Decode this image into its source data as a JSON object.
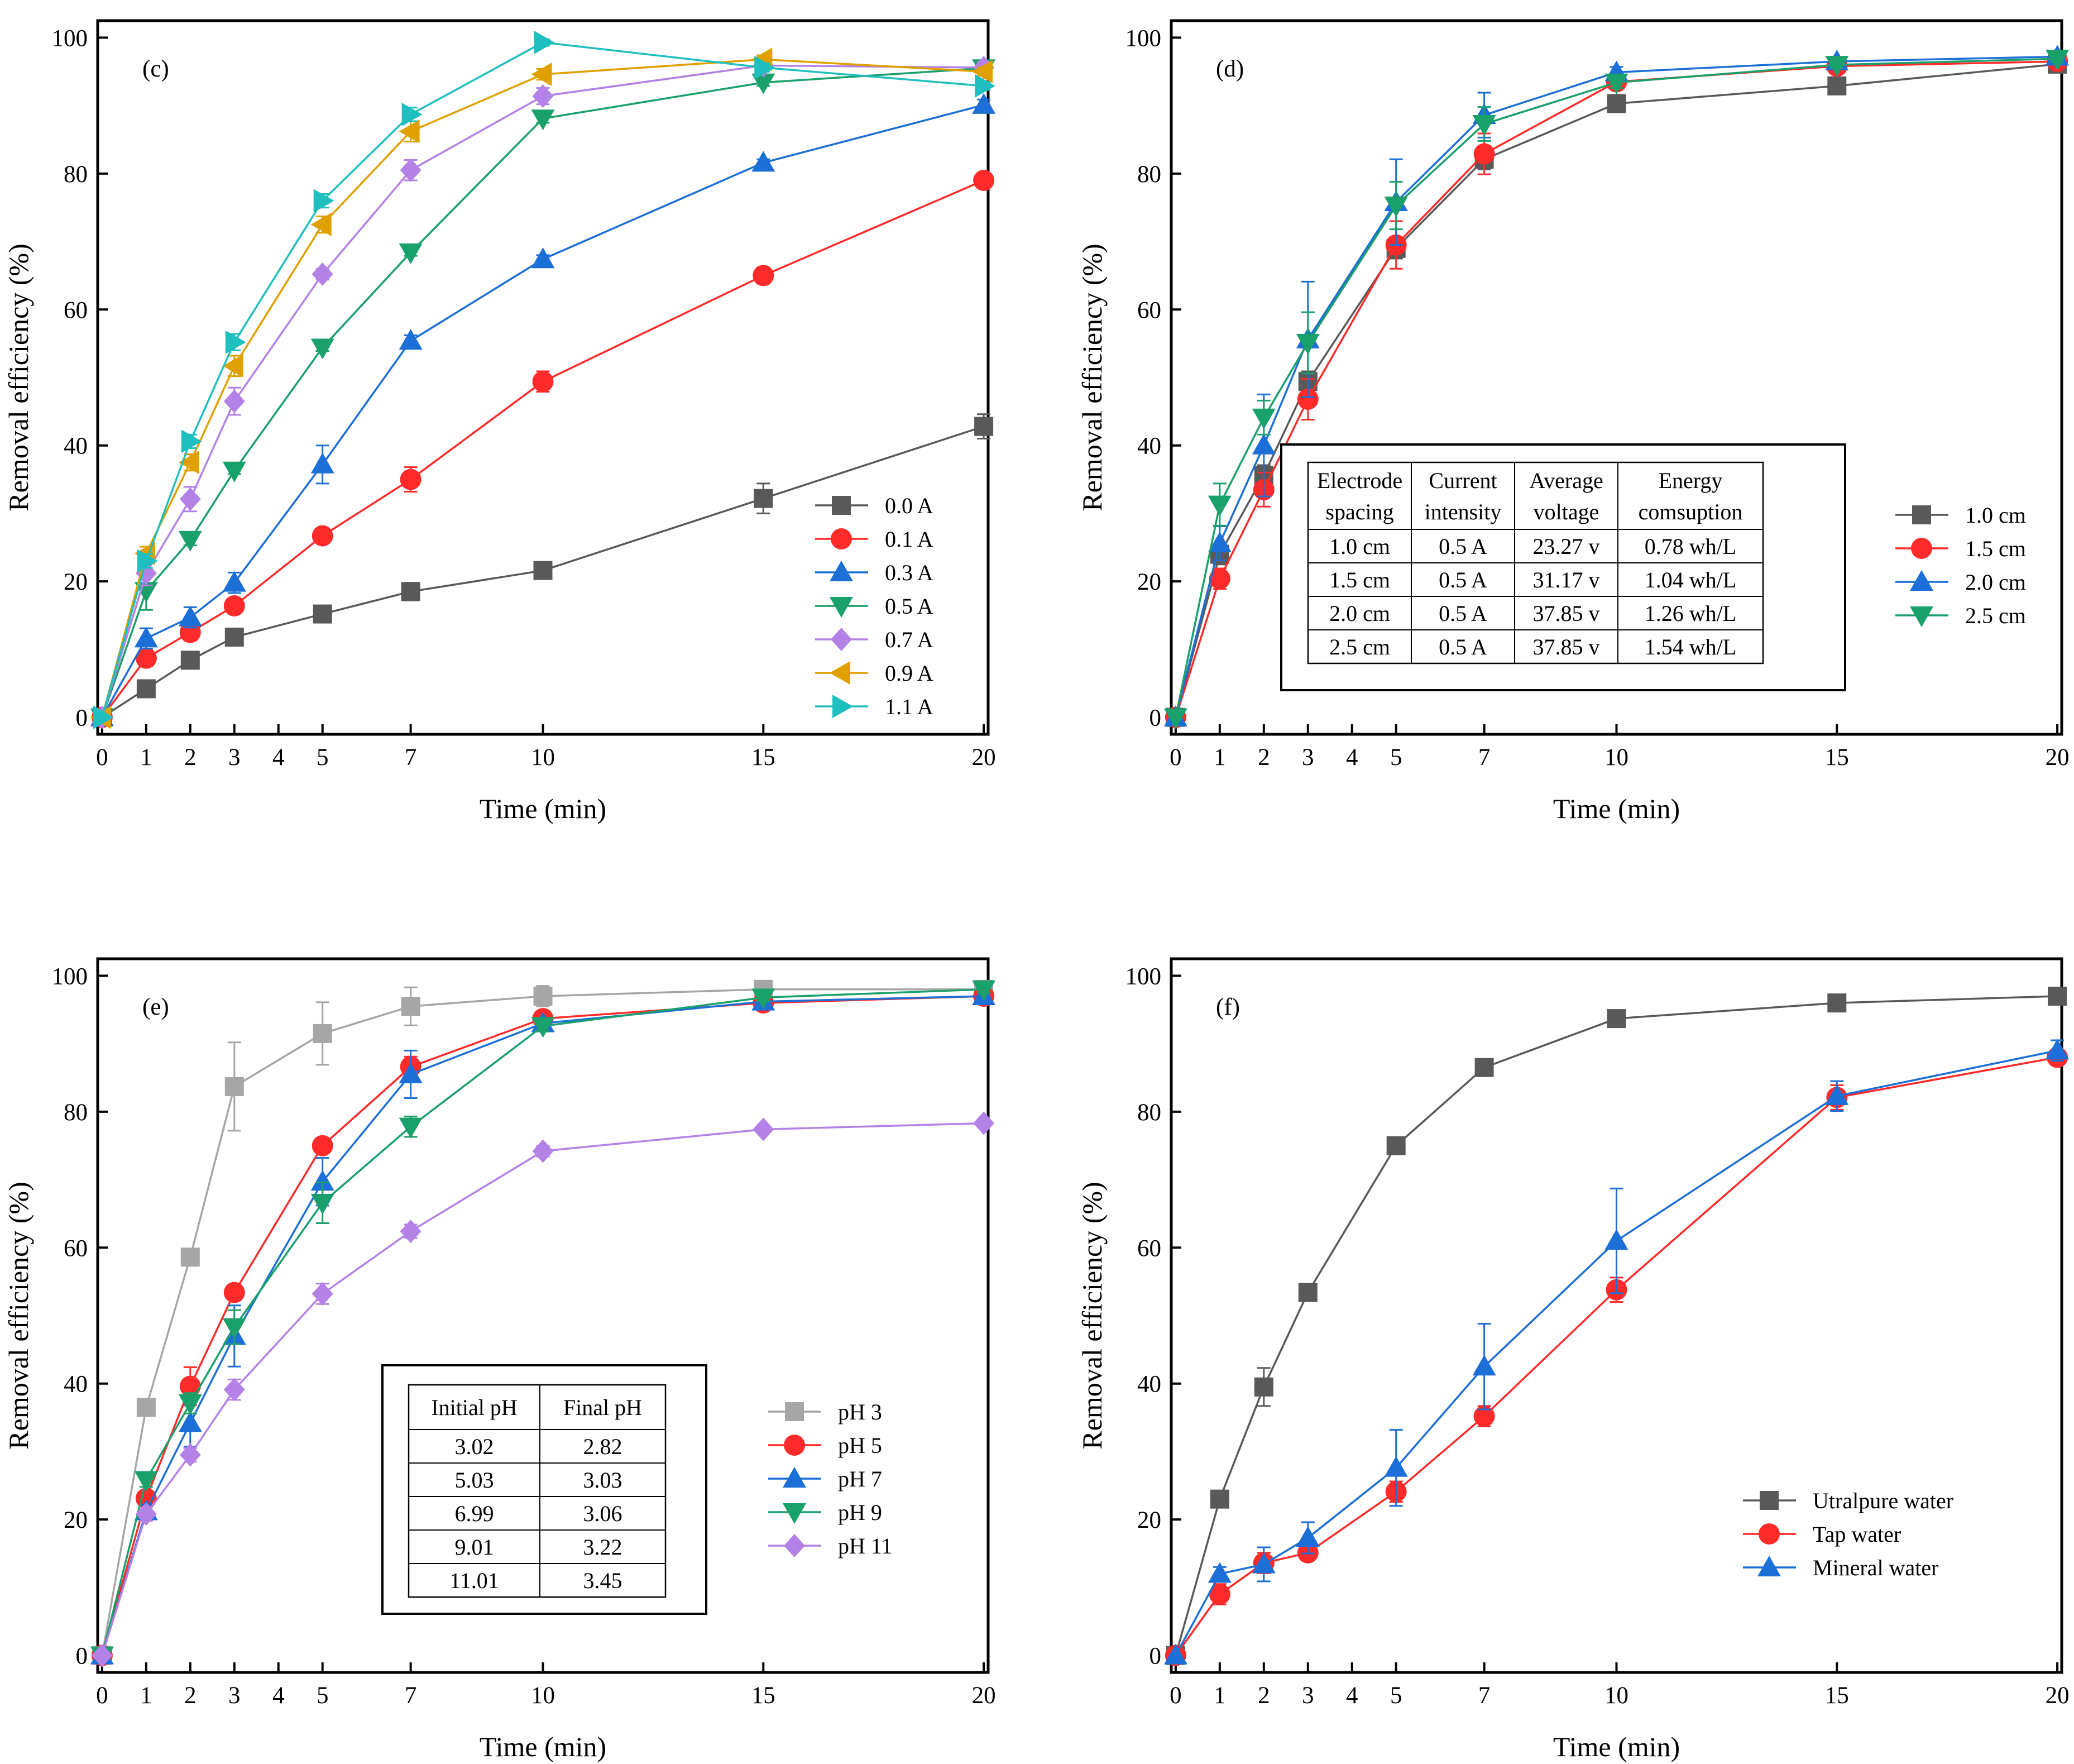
{
  "chart_data": [
    {
      "id": "c",
      "type": "line",
      "panel_label": "(c)",
      "xlabel": "Time (min)",
      "ylabel": "Removal efficiency (%)",
      "xlim": [
        0,
        20
      ],
      "ylim": [
        0,
        100
      ],
      "xticks": [
        0,
        1,
        2,
        3,
        4,
        5,
        7,
        10,
        15,
        20
      ],
      "yticks": [
        0,
        20,
        40,
        60,
        80,
        100
      ],
      "x": [
        0,
        1,
        2,
        3,
        5,
        7,
        10,
        15,
        20
      ],
      "legend_position": "lower-right",
      "series": [
        {
          "name": "0.0 A",
          "color": "#595959",
          "marker": "square",
          "values": [
            0,
            4.2,
            8.4,
            11.8,
            15.2,
            18.5,
            21.6,
            32.2,
            42.8
          ],
          "errors": [
            0,
            0.5,
            0.5,
            0.5,
            0.6,
            1.3,
            0.8,
            2.2,
            1.8
          ]
        },
        {
          "name": "0.1 A",
          "color": "#ff2a2a",
          "marker": "circle",
          "values": [
            0,
            8.7,
            12.5,
            16.4,
            26.7,
            35.0,
            49.4,
            65.0,
            79.0
          ],
          "errors": [
            0,
            1.2,
            1.2,
            0.6,
            0.5,
            1.8,
            1.5,
            1.2,
            0.6
          ]
        },
        {
          "name": "0.3 A",
          "color": "#1c6fd6",
          "marker": "triangle-up",
          "values": [
            0,
            11.6,
            14.7,
            19.8,
            37.2,
            55.4,
            67.4,
            81.6,
            90.1
          ],
          "errors": [
            0,
            1.5,
            1.5,
            1.5,
            2.8,
            0.8,
            0.6,
            0.5,
            0.8
          ]
        },
        {
          "name": "0.5 A",
          "color": "#1aa06a",
          "marker": "triangle-down",
          "values": [
            0,
            18.6,
            26.1,
            36.3,
            54.4,
            68.4,
            88.1,
            93.4,
            95.5
          ],
          "errors": [
            0,
            2.8,
            0.8,
            0.5,
            0.5,
            0.5,
            0.6,
            0.5,
            0.5
          ]
        },
        {
          "name": "0.7 A",
          "color": "#b482e6",
          "marker": "diamond",
          "values": [
            0,
            21.2,
            32.1,
            46.5,
            65.2,
            80.5,
            91.4,
            95.9,
            95.6
          ],
          "errors": [
            0,
            1.8,
            1.8,
            2.0,
            0.8,
            1.5,
            1.2,
            0.8,
            0.8
          ]
        },
        {
          "name": "0.9 A",
          "color": "#e0a000",
          "marker": "triangle-left",
          "values": [
            0,
            24.1,
            37.5,
            51.7,
            72.5,
            86.2,
            94.6,
            96.8,
            95.0
          ],
          "errors": [
            0,
            1.0,
            1.2,
            1.5,
            1.2,
            1.5,
            0.8,
            0.6,
            0.6
          ]
        },
        {
          "name": "1.1 A",
          "color": "#1fbfbf",
          "marker": "triangle-right",
          "values": [
            0,
            23.0,
            40.6,
            55.2,
            76.0,
            88.7,
            99.3,
            95.6,
            92.9
          ],
          "errors": [
            0,
            1.0,
            1.0,
            1.2,
            1.0,
            1.0,
            0.5,
            0.6,
            0.6
          ]
        }
      ]
    },
    {
      "id": "d",
      "type": "line",
      "panel_label": "(d)",
      "xlabel": "Time (min)",
      "ylabel": "Removal efficiency (%)",
      "xlim": [
        0,
        20
      ],
      "ylim": [
        0,
        100
      ],
      "xticks": [
        0,
        1,
        2,
        3,
        4,
        5,
        7,
        10,
        15,
        20
      ],
      "yticks": [
        0,
        20,
        40,
        60,
        80,
        100
      ],
      "x": [
        0,
        1,
        2,
        3,
        5,
        7,
        10,
        15,
        20
      ],
      "legend_position": "right",
      "series": [
        {
          "name": "1.0 cm",
          "color": "#595959",
          "marker": "square",
          "values": [
            0,
            24.0,
            35.6,
            49.4,
            69.0,
            82.1,
            90.3,
            92.9,
            96.1
          ],
          "errors": [
            0,
            1.5,
            1.5,
            1.5,
            1.5,
            1.5,
            0.6,
            0.6,
            0.5
          ]
        },
        {
          "name": "1.5 cm",
          "color": "#ff2a2a",
          "marker": "circle",
          "values": [
            0,
            20.4,
            33.5,
            46.8,
            69.5,
            82.9,
            93.5,
            95.8,
            96.5
          ],
          "errors": [
            0,
            1.5,
            2.5,
            3.0,
            3.5,
            3.0,
            0.8,
            0.5,
            0.5
          ]
        },
        {
          "name": "2.0 cm",
          "color": "#1c6fd6",
          "marker": "triangle-up",
          "values": [
            0,
            25.6,
            40.0,
            55.6,
            75.8,
            88.6,
            94.9,
            96.5,
            97.2
          ],
          "errors": [
            0,
            2.5,
            7.5,
            8.5,
            6.3,
            3.3,
            0.8,
            0.5,
            0.5
          ]
        },
        {
          "name": "2.5 cm",
          "color": "#1aa06a",
          "marker": "triangle-down",
          "values": [
            0,
            31.3,
            44.1,
            55.1,
            75.3,
            87.3,
            93.4,
            96.0,
            96.9
          ],
          "errors": [
            0,
            3.1,
            2.5,
            4.5,
            3.5,
            2.5,
            0.8,
            0.5,
            0.5
          ]
        }
      ],
      "table": {
        "headers": [
          [
            "Electrode",
            "spacing"
          ],
          [
            "Current",
            "intensity"
          ],
          [
            "Average",
            "voltage"
          ],
          [
            "Energy",
            "comsuption"
          ]
        ],
        "rows": [
          [
            "1.0 cm",
            "0.5 A",
            "23.27 v",
            "0.78 wh/L"
          ],
          [
            "1.5 cm",
            "0.5 A",
            "31.17 v",
            "1.04 wh/L"
          ],
          [
            "2.0 cm",
            "0.5 A",
            "37.85 v",
            "1.26 wh/L"
          ],
          [
            "2.5 cm",
            "0.5 A",
            "37.85 v",
            "1.54 wh/L"
          ]
        ]
      }
    },
    {
      "id": "e",
      "type": "line",
      "panel_label": "(e)",
      "xlabel": "Time (min)",
      "ylabel": "Removal efficiency (%)",
      "xlim": [
        0,
        20
      ],
      "ylim": [
        0,
        100
      ],
      "xticks": [
        0,
        1,
        2,
        3,
        4,
        5,
        7,
        10,
        15,
        20
      ],
      "yticks": [
        0,
        20,
        40,
        60,
        80,
        100
      ],
      "x": [
        0,
        1,
        2,
        3,
        5,
        7,
        10,
        15,
        20
      ],
      "legend_position": "lower-right",
      "series": [
        {
          "name": "pH 3",
          "color": "#a6a6a6",
          "marker": "square",
          "values": [
            0,
            36.5,
            58.6,
            83.7,
            91.5,
            95.5,
            97.0,
            98.0,
            98.0
          ],
          "errors": [
            0,
            0.8,
            0.8,
            6.5,
            4.6,
            2.8,
            1.5,
            0.8,
            0.6
          ]
        },
        {
          "name": "pH 5",
          "color": "#ff2a2a",
          "marker": "circle",
          "values": [
            0,
            23.1,
            39.6,
            53.4,
            75.0,
            86.6,
            93.7,
            96.0,
            97.0
          ],
          "errors": [
            0,
            1.0,
            2.8,
            0.8,
            0.8,
            1.5,
            0.8,
            0.5,
            0.5
          ]
        },
        {
          "name": "pH 7",
          "color": "#1c6fd6",
          "marker": "triangle-up",
          "values": [
            0,
            21.2,
            34.2,
            47.0,
            69.7,
            85.5,
            93.0,
            96.2,
            97.0
          ],
          "errors": [
            0,
            1.0,
            3.5,
            4.5,
            3.5,
            3.5,
            0.8,
            0.5,
            0.5
          ]
        },
        {
          "name": "pH 9",
          "color": "#1aa06a",
          "marker": "triangle-down",
          "values": [
            0,
            25.8,
            37.1,
            48.3,
            66.6,
            77.8,
            92.6,
            96.8,
            98.0
          ],
          "errors": [
            0,
            1.0,
            1.5,
            2.5,
            3.0,
            1.5,
            0.8,
            0.5,
            0.5
          ]
        },
        {
          "name": "pH 11",
          "color": "#b482e6",
          "marker": "diamond",
          "values": [
            0,
            20.8,
            29.5,
            39.1,
            53.2,
            62.4,
            74.2,
            77.4,
            78.3
          ],
          "errors": [
            0,
            1.0,
            1.0,
            1.5,
            1.5,
            1.0,
            0.8,
            0.5,
            0.5
          ]
        }
      ],
      "table": {
        "headers": [
          [
            "Initial pH"
          ],
          [
            "Final pH"
          ]
        ],
        "rows": [
          [
            "3.02",
            "2.82"
          ],
          [
            "5.03",
            "3.03"
          ],
          [
            "6.99",
            "3.06"
          ],
          [
            "9.01",
            "3.22"
          ],
          [
            "11.01",
            "3.45"
          ]
        ]
      }
    },
    {
      "id": "f",
      "type": "line",
      "panel_label": "(f)",
      "xlabel": "Time (min)",
      "ylabel": "Removal efficiency (%)",
      "xlim": [
        0,
        20
      ],
      "ylim": [
        0,
        100
      ],
      "xticks": [
        0,
        1,
        2,
        3,
        4,
        5,
        7,
        10,
        15,
        20
      ],
      "yticks": [
        0,
        20,
        40,
        60,
        80,
        100
      ],
      "x": [
        0,
        1,
        2,
        3,
        5,
        7,
        10,
        15,
        20
      ],
      "legend_position": "lower-right",
      "series": [
        {
          "name": "Utralpure water",
          "color": "#595959",
          "marker": "square",
          "values": [
            0,
            23.0,
            39.5,
            53.4,
            75.0,
            86.5,
            93.7,
            96.0,
            97.0
          ],
          "errors": [
            0,
            0.8,
            2.8,
            0.8,
            0.8,
            0.8,
            0.6,
            0.5,
            0.5
          ]
        },
        {
          "name": "Tap water",
          "color": "#ff2a2a",
          "marker": "circle",
          "values": [
            0,
            9.0,
            13.6,
            15.1,
            24.1,
            35.2,
            53.8,
            82.1,
            88.0
          ],
          "errors": [
            0,
            1.5,
            1.5,
            1.0,
            1.5,
            1.5,
            1.8,
            1.8,
            0.8
          ]
        },
        {
          "name": "Mineral water",
          "color": "#1c6fd6",
          "marker": "triangle-up",
          "values": [
            0,
            12.0,
            13.4,
            17.3,
            27.6,
            42.5,
            61.0,
            82.3,
            89.0
          ],
          "errors": [
            0,
            1.0,
            2.5,
            2.3,
            5.6,
            6.3,
            7.7,
            2.2,
            1.5
          ]
        }
      ]
    }
  ]
}
